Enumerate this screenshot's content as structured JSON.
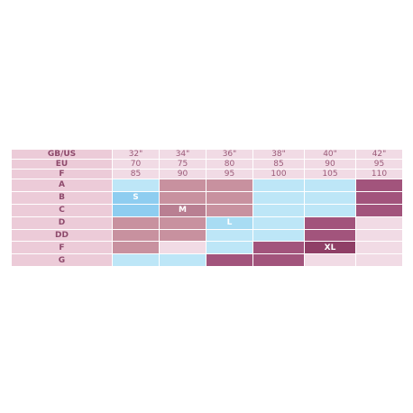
{
  "table": {
    "header_rows": [
      {
        "label": "GB/US",
        "cells": [
          "32\"",
          "34\"",
          "36\"",
          "38\"",
          "40\"",
          "42\""
        ]
      },
      {
        "label": "EU",
        "cells": [
          "70",
          "75",
          "80",
          "85",
          "90",
          "95"
        ]
      },
      {
        "label": "F",
        "cells": [
          "85",
          "90",
          "95",
          "100",
          "105",
          "110"
        ]
      }
    ],
    "body_rows": [
      {
        "label": "A",
        "colors": [
          "#bde6f7",
          "#c8919f",
          "#c8919f",
          "#bde6f7",
          "#bde6f7",
          "#a2547c"
        ]
      },
      {
        "label": "B",
        "colors": [
          "#8ecdf0",
          "#c8919f",
          "#c8919f",
          "#bde6f7",
          "#bde6f7",
          "#a2547c"
        ],
        "size": {
          "text": "S",
          "column": 0
        }
      },
      {
        "label": "C",
        "colors": [
          "#8ecdf0",
          "#b97f92",
          "#c8919f",
          "#bde6f7",
          "#bde6f7",
          "#a2547c"
        ],
        "size": {
          "text": "M",
          "column": 1
        }
      },
      {
        "label": "D",
        "colors": [
          "#c8919f",
          "#c8919f",
          "#a8dcf3",
          "#bde6f7",
          "#a2547c",
          "#f1dbe5"
        ],
        "size": {
          "text": "L",
          "column": 2
        }
      },
      {
        "label": "DD",
        "colors": [
          "#c8919f",
          "#c8919f",
          "#bde6f7",
          "#bde6f7",
          "#a2547c",
          "#f1dbe5"
        ]
      },
      {
        "label": "F",
        "colors": [
          "#c8919f",
          "#f1dbe5",
          "#bde6f7",
          "#a2547c",
          "#8f3f66",
          "#f1dbe5"
        ],
        "size": {
          "text": "XL",
          "column": 4
        }
      },
      {
        "label": "G",
        "colors": [
          "#bde6f7",
          "#bde6f7",
          "#a2547c",
          "#a2547c",
          "#f1dbe5",
          "#f1dbe5"
        ]
      }
    ]
  }
}
